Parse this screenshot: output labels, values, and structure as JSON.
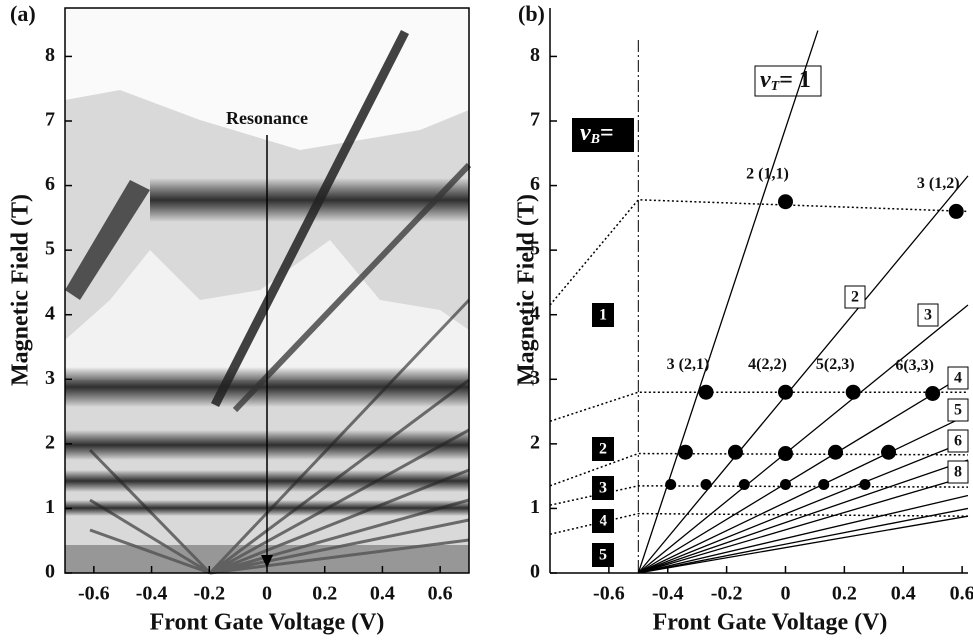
{
  "chart_data": [
    {
      "type": "image",
      "title": "(a)",
      "xlabel": "Front Gate Voltage (V)",
      "ylabel": "Magnetic Field (T)",
      "xlim": [
        -0.7,
        0.7
      ],
      "xticks": [
        -0.6,
        -0.4,
        -0.2,
        0,
        0.2,
        0.4,
        0.6
      ],
      "ylim": [
        0,
        8.75
      ],
      "yticks": [
        0,
        1,
        2,
        3,
        4,
        5,
        6,
        7,
        8
      ],
      "annotation": "Resonance"
    },
    {
      "type": "line",
      "title": "(b)",
      "xlabel": "Front Gate Voltage (V)",
      "ylabel": "Magnetic Field (T)",
      "xlim": [
        -0.8,
        0.62
      ],
      "xticks": [
        -0.6,
        -0.4,
        -0.2,
        0,
        0.2,
        0.4,
        0.6
      ],
      "ylim": [
        0,
        8.75
      ],
      "yticks": [
        0,
        1,
        2,
        3,
        4,
        5,
        6,
        7,
        8
      ],
      "vline_x": -0.5,
      "nu_t_label": {
        "symbol": "ν",
        "subscript": "T",
        "suffix": "= 1"
      },
      "series": [
        {
          "x": [
            -0.5,
            0.11
          ],
          "values": [
            0,
            8.4
          ]
        },
        {
          "name": "2",
          "x": [
            -0.5,
            0.62
          ],
          "values": [
            0,
            6.15
          ]
        },
        {
          "name": "3",
          "x": [
            -0.5,
            0.62
          ],
          "values": [
            0,
            4.15
          ]
        },
        {
          "name": "4",
          "x": [
            -0.5,
            0.62
          ],
          "values": [
            0,
            3.1
          ]
        },
        {
          "name": "5",
          "x": [
            -0.5,
            0.62
          ],
          "values": [
            0,
            2.45
          ]
        },
        {
          "name": "6",
          "x": [
            -0.5,
            0.62
          ],
          "values": [
            0,
            2.05
          ]
        },
        {
          "x": [
            -0.5,
            0.62
          ],
          "values": [
            0,
            1.75
          ]
        },
        {
          "name": "8",
          "x": [
            -0.5,
            0.62
          ],
          "values": [
            0,
            1.5
          ]
        },
        {
          "x": [
            -0.5,
            0.62
          ],
          "values": [
            0,
            1.2
          ]
        },
        {
          "x": [
            -0.5,
            0.62
          ],
          "values": [
            0,
            1.0
          ]
        },
        {
          "x": [
            -0.5,
            0.62
          ],
          "values": [
            0,
            0.88
          ]
        }
      ],
      "nu_b_label": {
        "symbol": "ν",
        "subscript": "B",
        "suffix": "="
      },
      "levels": [
        {
          "name": "1",
          "x": [
            -0.8,
            -0.5,
            0.62
          ],
          "values": [
            4.15,
            5.78,
            5.6
          ]
        },
        {
          "name": "2",
          "x": [
            -0.8,
            -0.5,
            0.62
          ],
          "values": [
            2.35,
            2.8,
            2.8
          ]
        },
        {
          "name": "3",
          "x": [
            -0.8,
            -0.5,
            0.62
          ],
          "values": [
            1.35,
            1.85,
            1.83
          ]
        },
        {
          "name": "4",
          "x": [
            -0.8,
            -0.5,
            0.62
          ],
          "values": [
            1.05,
            1.35,
            1.33
          ]
        },
        {
          "name": "5",
          "x": [
            -0.8,
            -0.5,
            0.62
          ],
          "values": [
            0.6,
            0.92,
            0.88
          ]
        }
      ],
      "points": {
        "x": [
          0,
          0.58,
          -0.27,
          0,
          0.23,
          0.5,
          -0.34,
          -0.17,
          0,
          0.17,
          0.35,
          -0.39,
          -0.27,
          -0.14,
          0,
          0.13,
          0.27
        ],
        "values": [
          5.75,
          5.6,
          2.8,
          2.8,
          2.8,
          2.78,
          1.87,
          1.87,
          1.85,
          1.87,
          1.87,
          1.37,
          1.37,
          1.37,
          1.37,
          1.37,
          1.37
        ],
        "labels": [
          "2 (1,1)",
          "3 (1,2)",
          "3 (2,1)",
          "4(2,2)",
          "5(2,3)",
          "6(3,3)",
          null,
          null,
          null,
          null,
          null,
          null,
          null,
          null,
          null,
          null,
          null
        ]
      }
    }
  ]
}
